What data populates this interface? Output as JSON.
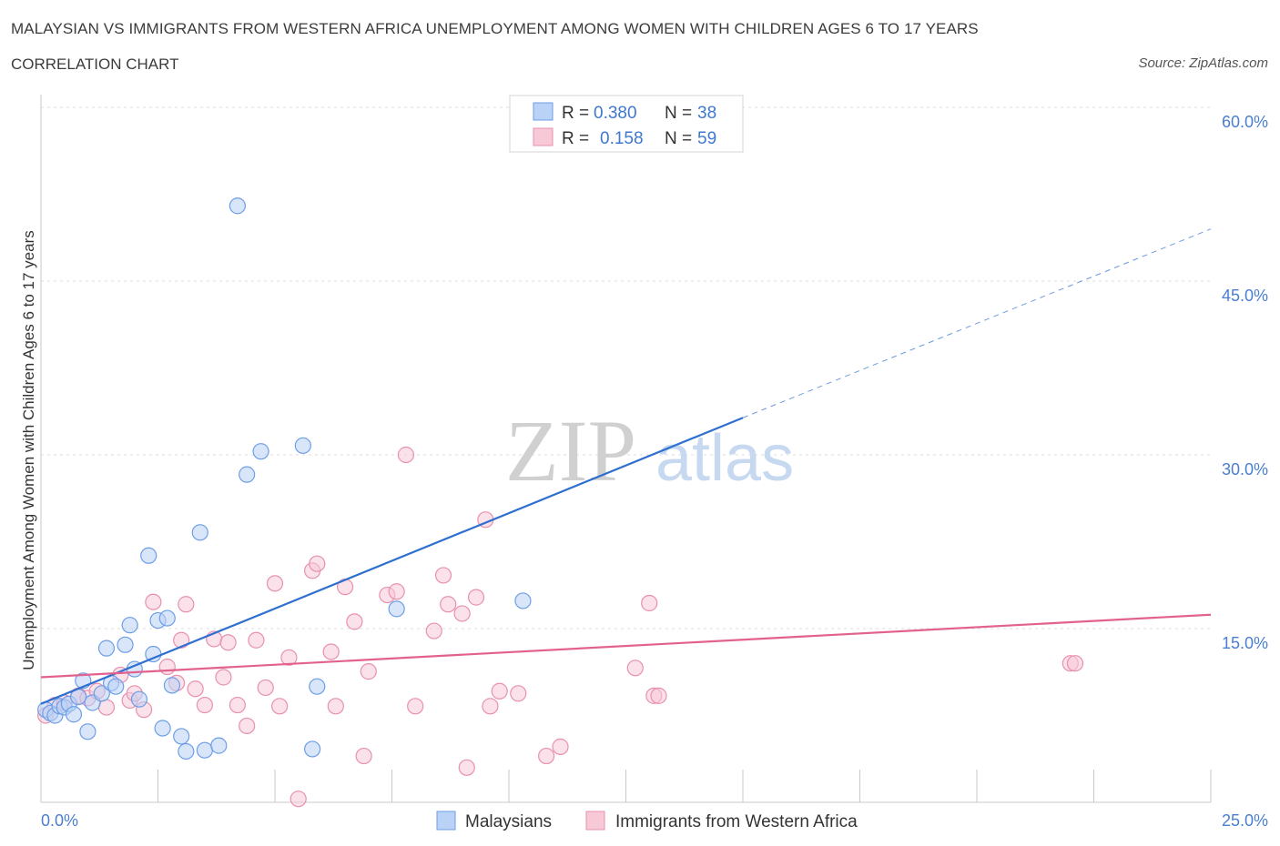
{
  "header": {
    "title": "MALAYSIAN VS IMMIGRANTS FROM WESTERN AFRICA UNEMPLOYMENT AMONG WOMEN WITH CHILDREN AGES 6 TO 17 YEARS",
    "subtitle": "CORRELATION CHART",
    "source": "Source: ZipAtlas.com"
  },
  "colors": {
    "blue_fill": "#b9d2f5",
    "blue_stroke": "#6d9ee6",
    "blue_line": "#2e6fd0",
    "pink_fill": "#f7c9d7",
    "pink_stroke": "#e891ad",
    "pink_line": "#e2628d",
    "grid": "#dcdcdc",
    "tick_text": "#4a7fd1"
  },
  "legend": {
    "r_label": "R =",
    "n_label": "N =",
    "rows": [
      {
        "r": "0.380",
        "n": "38"
      },
      {
        "r": "0.158",
        "n": "59"
      }
    ]
  },
  "watermark": {
    "zip": "ZIP",
    "atlas": "atlas"
  },
  "chart_data": {
    "type": "scatter",
    "title": "MALAYSIAN VS IMMIGRANTS FROM WESTERN AFRICA UNEMPLOYMENT AMONG WOMEN WITH CHILDREN AGES 6 TO 17 YEARS",
    "xlabel": "",
    "ylabel": "Unemployment Among Women with Children Ages 6 to 17 years",
    "xlim": [
      0,
      25
    ],
    "ylim": [
      0,
      60
    ],
    "x_tick_labels": [
      "0.0%",
      "25.0%"
    ],
    "y_ticks": [
      15,
      30,
      45,
      60
    ],
    "y_tick_labels": [
      "15.0%",
      "30.0%",
      "45.0%",
      "60.0%"
    ],
    "grid": true,
    "legend_position": "top-center",
    "series": [
      {
        "name": "Malaysians",
        "color": "#6d9ee6",
        "r": 0.38,
        "n": 38,
        "trend": {
          "x": [
            0,
            15
          ],
          "y": [
            8.5,
            33.2
          ],
          "dashed_to": [
            25,
            49.5
          ]
        },
        "points": [
          [
            0.1,
            8.0
          ],
          [
            0.2,
            7.7
          ],
          [
            0.3,
            7.5
          ],
          [
            0.4,
            8.3
          ],
          [
            0.5,
            8.2
          ],
          [
            0.6,
            8.5
          ],
          [
            0.7,
            7.6
          ],
          [
            0.8,
            9.1
          ],
          [
            0.9,
            10.5
          ],
          [
            1.0,
            6.1
          ],
          [
            1.1,
            8.6
          ],
          [
            1.3,
            9.4
          ],
          [
            1.4,
            13.3
          ],
          [
            1.5,
            10.3
          ],
          [
            1.6,
            10.0
          ],
          [
            1.8,
            13.6
          ],
          [
            1.9,
            15.3
          ],
          [
            2.0,
            11.5
          ],
          [
            2.1,
            8.9
          ],
          [
            2.3,
            21.3
          ],
          [
            2.4,
            12.8
          ],
          [
            2.5,
            15.7
          ],
          [
            2.6,
            6.4
          ],
          [
            2.7,
            15.9
          ],
          [
            2.8,
            10.1
          ],
          [
            3.0,
            5.7
          ],
          [
            3.1,
            4.4
          ],
          [
            3.4,
            23.3
          ],
          [
            3.5,
            4.5
          ],
          [
            3.8,
            4.9
          ],
          [
            4.2,
            51.5
          ],
          [
            4.4,
            28.3
          ],
          [
            4.7,
            30.3
          ],
          [
            5.6,
            30.8
          ],
          [
            5.8,
            4.6
          ],
          [
            5.9,
            10.0
          ],
          [
            7.6,
            16.7
          ],
          [
            10.3,
            17.4
          ]
        ]
      },
      {
        "name": "Immigrants from Western Africa",
        "color": "#e891ad",
        "r": 0.158,
        "n": 59,
        "trend": {
          "x": [
            0,
            25
          ],
          "y": [
            10.8,
            16.2
          ]
        },
        "points": [
          [
            0.1,
            7.5
          ],
          [
            0.3,
            8.4
          ],
          [
            0.5,
            8.6
          ],
          [
            0.8,
            9.2
          ],
          [
            1.0,
            9.0
          ],
          [
            1.2,
            9.6
          ],
          [
            1.4,
            8.2
          ],
          [
            1.7,
            11.0
          ],
          [
            1.9,
            8.8
          ],
          [
            2.0,
            9.4
          ],
          [
            2.2,
            8.0
          ],
          [
            2.4,
            17.3
          ],
          [
            2.7,
            11.7
          ],
          [
            2.9,
            10.3
          ],
          [
            3.0,
            14.0
          ],
          [
            3.1,
            17.1
          ],
          [
            3.3,
            9.8
          ],
          [
            3.5,
            8.4
          ],
          [
            3.7,
            14.1
          ],
          [
            3.9,
            10.8
          ],
          [
            4.0,
            13.8
          ],
          [
            4.2,
            8.4
          ],
          [
            4.4,
            6.6
          ],
          [
            4.6,
            14.0
          ],
          [
            4.8,
            9.9
          ],
          [
            5.0,
            18.9
          ],
          [
            5.1,
            8.3
          ],
          [
            5.3,
            12.5
          ],
          [
            5.5,
            0.3
          ],
          [
            5.8,
            20.0
          ],
          [
            5.9,
            20.6
          ],
          [
            6.2,
            13.0
          ],
          [
            6.3,
            8.3
          ],
          [
            6.5,
            18.6
          ],
          [
            6.7,
            15.6
          ],
          [
            6.9,
            4.0
          ],
          [
            7.0,
            11.3
          ],
          [
            7.4,
            17.9
          ],
          [
            7.6,
            18.2
          ],
          [
            7.8,
            30.0
          ],
          [
            8.0,
            8.3
          ],
          [
            8.4,
            14.8
          ],
          [
            8.6,
            19.6
          ],
          [
            8.7,
            17.1
          ],
          [
            9.0,
            16.3
          ],
          [
            9.1,
            3.0
          ],
          [
            9.3,
            17.7
          ],
          [
            9.5,
            24.4
          ],
          [
            9.6,
            8.3
          ],
          [
            9.8,
            9.6
          ],
          [
            10.2,
            9.4
          ],
          [
            10.8,
            4.0
          ],
          [
            11.1,
            4.8
          ],
          [
            12.7,
            11.6
          ],
          [
            13.0,
            17.2
          ],
          [
            13.1,
            9.2
          ],
          [
            13.2,
            9.2
          ],
          [
            22.0,
            12.0
          ],
          [
            22.1,
            12.0
          ]
        ]
      }
    ]
  },
  "bottom_legend": {
    "items": [
      {
        "label": "Malaysians"
      },
      {
        "label": "Immigrants from Western Africa"
      }
    ]
  }
}
